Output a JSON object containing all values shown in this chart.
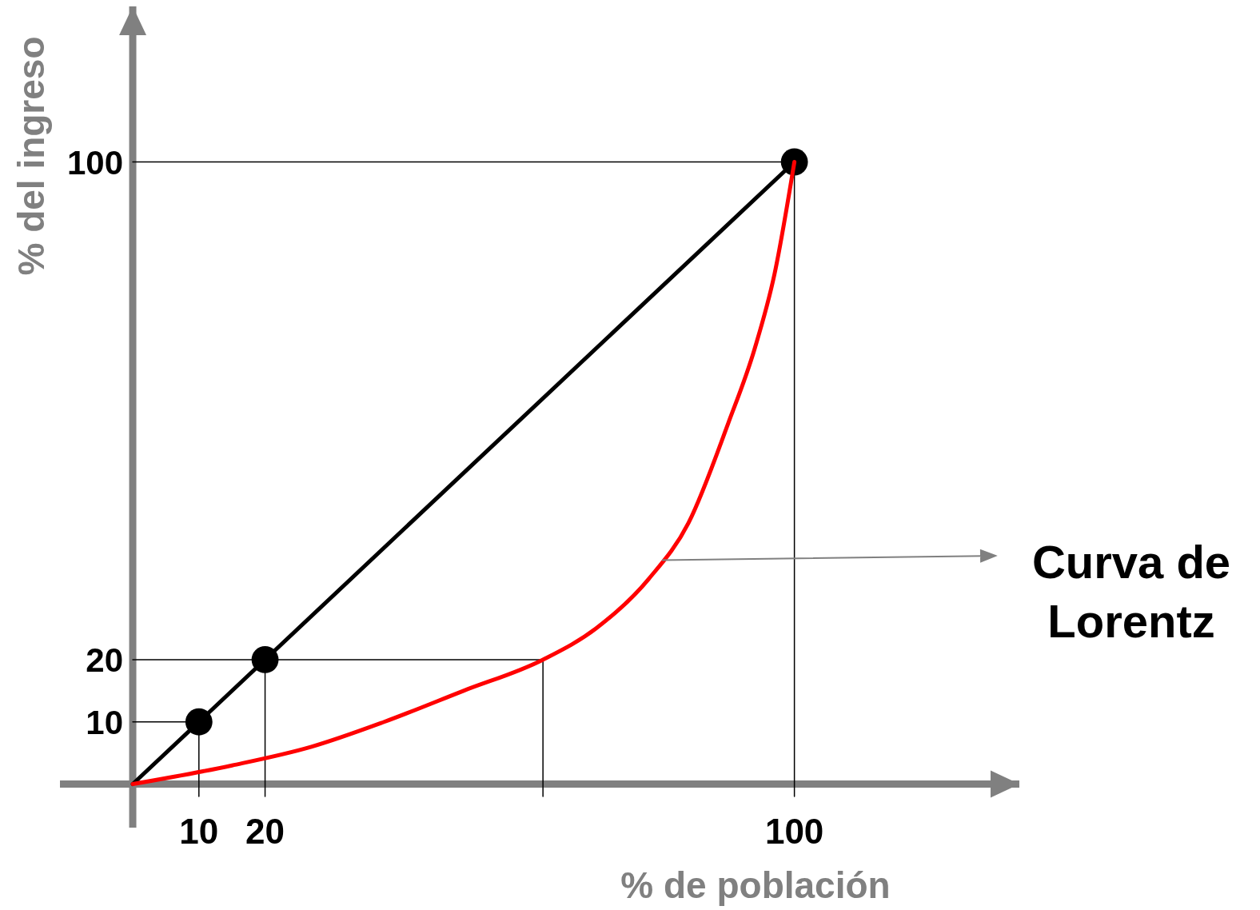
{
  "chart_data": {
    "type": "line",
    "xlabel": "% de población",
    "ylabel": "% del ingreso",
    "xlim": [
      -11,
      134
    ],
    "ylim": [
      -7,
      125
    ],
    "xticks": [
      10,
      20,
      100
    ],
    "yticks": [
      10,
      20,
      100
    ],
    "grid": false,
    "series": [
      {
        "color": "#000000",
        "x": [
          0,
          10,
          null,
          0,
          62,
          null,
          20,
          20,
          null,
          62,
          62,
          null,
          0,
          100,
          100,
          null,
          10,
          10
        ],
        "values": [
          10,
          10,
          null,
          20,
          20,
          null,
          20,
          -2,
          null,
          20,
          -2,
          null,
          100,
          100,
          -2,
          null,
          10,
          -2
        ]
      },
      {
        "color": "#000000",
        "x": [
          0,
          100
        ],
        "values": [
          0,
          100
        ]
      },
      {
        "color": "#ff0000",
        "x": [
          0,
          15,
          27,
          38,
          50,
          62,
          70,
          78,
          84,
          90,
          94,
          97,
          100
        ],
        "values": [
          0,
          3,
          6,
          10,
          15,
          20,
          25,
          33,
          42,
          58,
          70,
          82,
          100
        ]
      },
      {
        "type": "scatter",
        "color": "#000000",
        "marker": "circle",
        "x": [
          10,
          20,
          100
        ],
        "values": [
          10,
          20,
          100
        ]
      }
    ],
    "annotations": [
      {
        "text": "Curva de Lorentz",
        "x": 80,
        "y": 36
      }
    ]
  }
}
